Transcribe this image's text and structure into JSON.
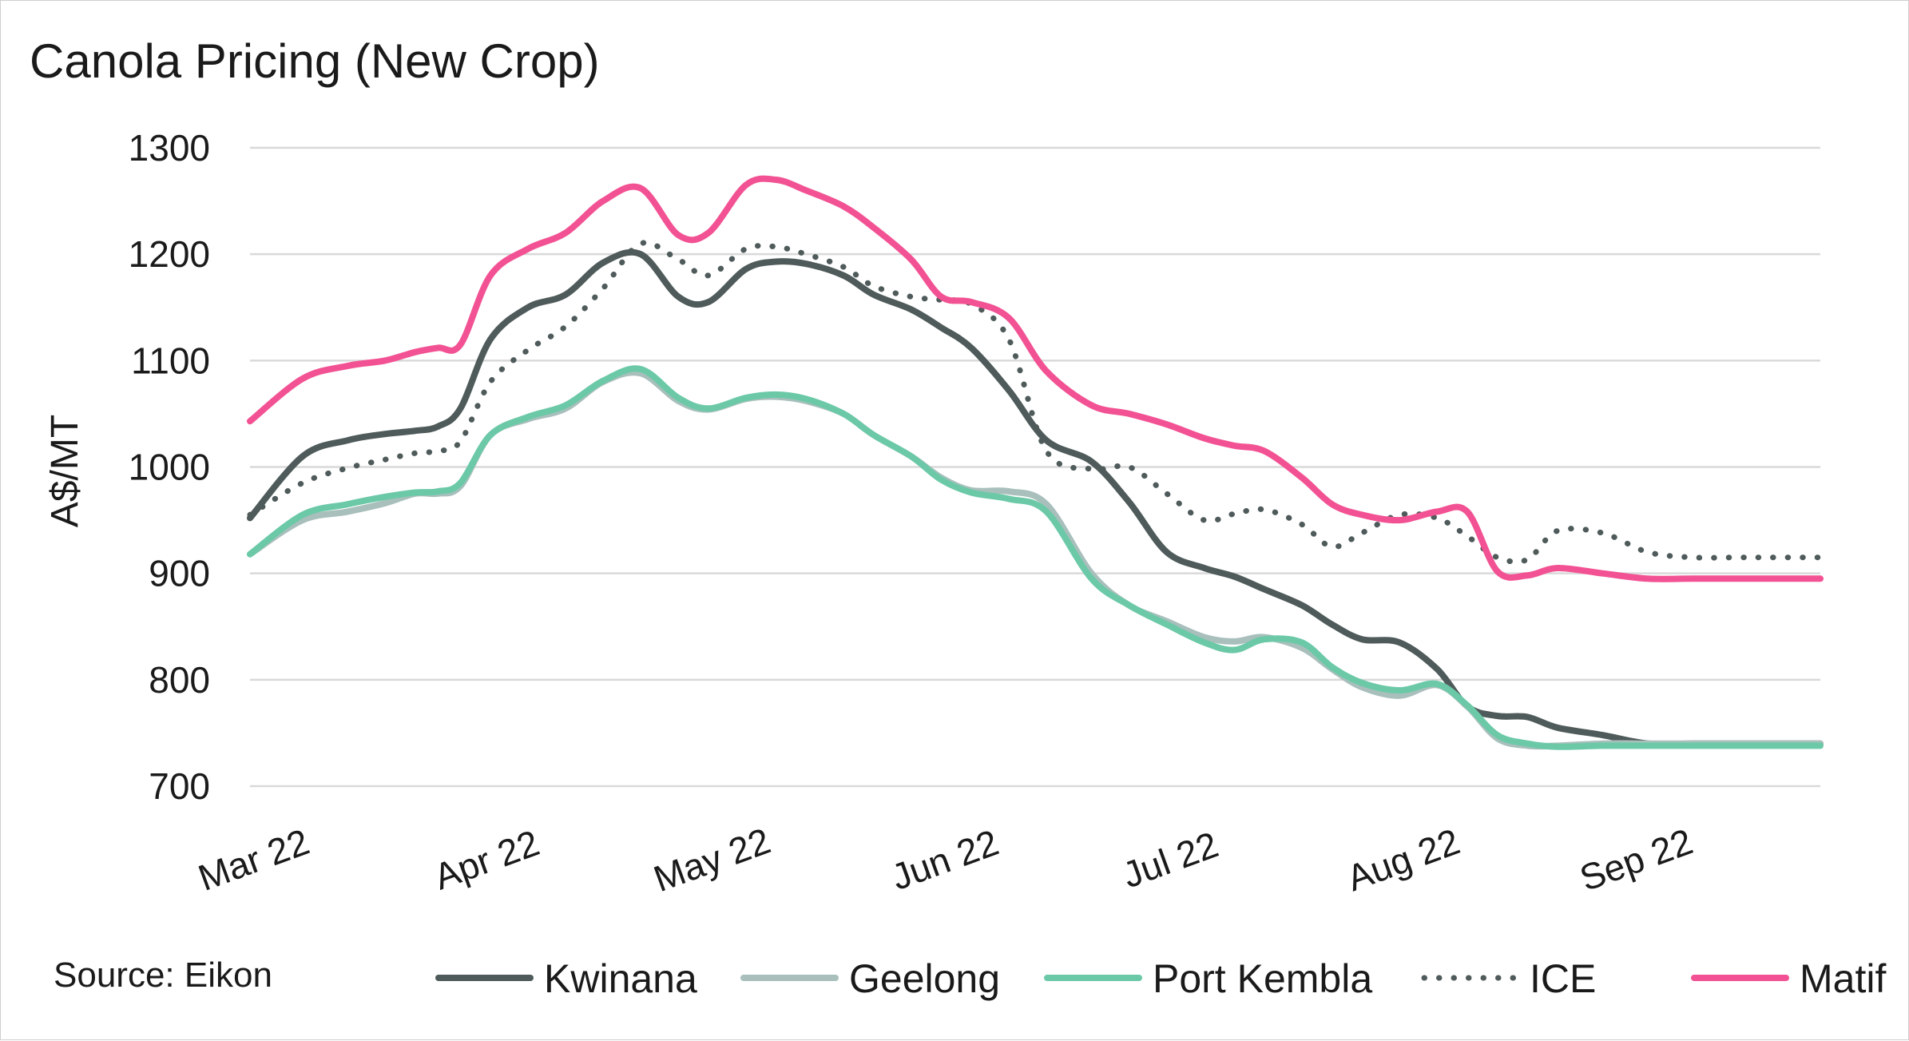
{
  "chart_data": {
    "type": "line",
    "title": "Canola Pricing (New Crop)",
    "ylabel": "A$/MT",
    "xlabel": "",
    "ylim": [
      700,
      1300
    ],
    "yticks": [
      700,
      800,
      900,
      1000,
      1100,
      1200,
      1300
    ],
    "xlim": [
      "2022-03-01",
      "2022-09-26"
    ],
    "xticks": [
      {
        "label": "Mar 22",
        "date": "2022-03-01"
      },
      {
        "label": "Apr 22",
        "date": "2022-04-01"
      },
      {
        "label": "May 22",
        "date": "2022-05-01"
      },
      {
        "label": "Jun 22",
        "date": "2022-06-01"
      },
      {
        "label": "Jul 22",
        "date": "2022-07-01"
      },
      {
        "label": "Aug 22",
        "date": "2022-08-01"
      },
      {
        "label": "Sep 22",
        "date": "2022-09-01"
      }
    ],
    "grid": true,
    "legend_position": "bottom",
    "source": "Source: Eikon",
    "x": [
      "2022-03-01",
      "2022-03-08",
      "2022-03-14",
      "2022-03-19",
      "2022-03-23",
      "2022-03-26",
      "2022-03-29",
      "2022-04-02",
      "2022-04-07",
      "2022-04-12",
      "2022-04-17",
      "2022-04-22",
      "2022-04-27",
      "2022-05-01",
      "2022-05-06",
      "2022-05-10",
      "2022-05-14",
      "2022-05-19",
      "2022-05-23",
      "2022-05-28",
      "2022-06-01",
      "2022-06-05",
      "2022-06-10",
      "2022-06-15",
      "2022-06-21",
      "2022-06-26",
      "2022-07-01",
      "2022-07-06",
      "2022-07-10",
      "2022-07-14",
      "2022-07-19",
      "2022-07-23",
      "2022-07-27",
      "2022-08-01",
      "2022-08-06",
      "2022-08-10",
      "2022-08-14",
      "2022-08-18",
      "2022-08-22",
      "2022-08-28",
      "2022-09-03",
      "2022-09-09",
      "2022-09-15",
      "2022-09-20",
      "2022-09-26"
    ],
    "series": [
      {
        "name": "Kwinana",
        "color": "#4f5a5a",
        "dash": "solid",
        "values": [
          952,
          1010,
          1025,
          1031,
          1034,
          1038,
          1055,
          1120,
          1150,
          1162,
          1192,
          1200,
          1160,
          1155,
          1186,
          1193,
          1191,
          1180,
          1162,
          1148,
          1131,
          1112,
          1072,
          1025,
          1005,
          967,
          920,
          905,
          897,
          885,
          870,
          852,
          838,
          835,
          810,
          775,
          766,
          765,
          755,
          748,
          740,
          740,
          740,
          740,
          740
        ]
      },
      {
        "name": "Geelong",
        "color": "#a8bfbc",
        "dash": "solid",
        "values": [
          918,
          950,
          958,
          966,
          975,
          975,
          982,
          1030,
          1045,
          1055,
          1080,
          1088,
          1062,
          1054,
          1064,
          1066,
          1062,
          1050,
          1030,
          1010,
          990,
          978,
          977,
          965,
          900,
          870,
          855,
          840,
          836,
          840,
          830,
          810,
          793,
          785,
          795,
          775,
          745,
          738,
          738,
          740,
          740,
          740,
          740,
          740,
          740
        ]
      },
      {
        "name": "Port Kembla",
        "color": "#6cc9a7",
        "dash": "solid",
        "values": [
          918,
          955,
          965,
          972,
          976,
          977,
          985,
          1030,
          1047,
          1058,
          1081,
          1092,
          1065,
          1055,
          1065,
          1068,
          1064,
          1050,
          1030,
          1010,
          988,
          976,
          970,
          958,
          895,
          870,
          852,
          835,
          828,
          838,
          835,
          812,
          797,
          790,
          796,
          776,
          748,
          740,
          737,
          738,
          738,
          738,
          738,
          738,
          738
        ]
      },
      {
        "name": "ICE",
        "color": "#4f5a5a",
        "dash": "dotted",
        "values": [
          955,
          985,
          999,
          1007,
          1013,
          1015,
          1024,
          1080,
          1110,
          1132,
          1168,
          1210,
          1195,
          1180,
          1205,
          1207,
          1200,
          1188,
          1170,
          1160,
          1157,
          1153,
          1120,
          1015,
          998,
          1000,
          975,
          950,
          956,
          960,
          946,
          925,
          938,
          955,
          952,
          935,
          915,
          913,
          940,
          938,
          920,
          915,
          915,
          915,
          915
        ]
      },
      {
        "name": "Matif",
        "color": "#f25293",
        "dash": "solid",
        "values": [
          1043,
          1083,
          1095,
          1100,
          1108,
          1112,
          1115,
          1180,
          1205,
          1220,
          1250,
          1262,
          1218,
          1220,
          1265,
          1270,
          1260,
          1245,
          1225,
          1195,
          1160,
          1155,
          1140,
          1090,
          1058,
          1050,
          1040,
          1027,
          1020,
          1015,
          990,
          965,
          955,
          950,
          958,
          958,
          902,
          898,
          905,
          900,
          895,
          895,
          895,
          895,
          895
        ]
      }
    ]
  }
}
